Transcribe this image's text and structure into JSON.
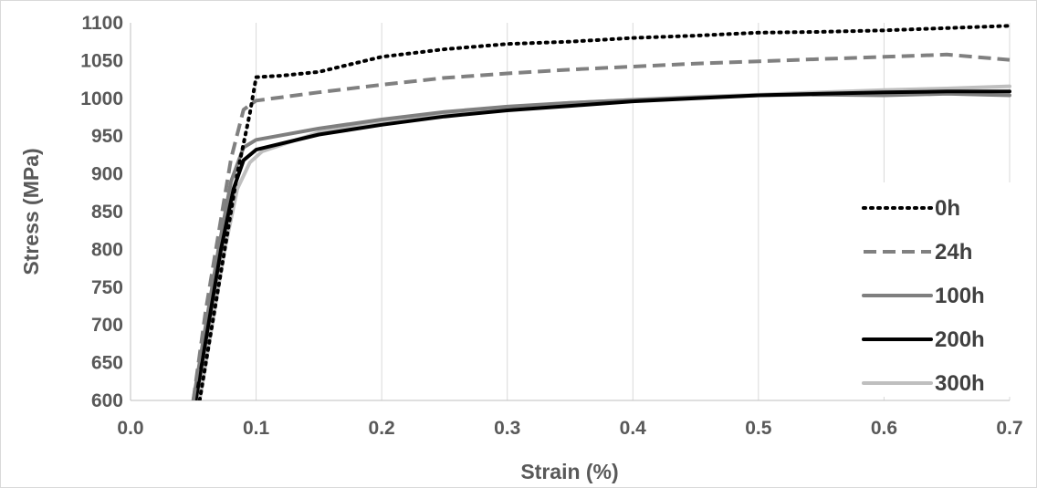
{
  "chart_data": {
    "type": "line",
    "title": "",
    "xlabel": "Strain (%)",
    "ylabel": "Stress (MPa)",
    "xlim": [
      0.0,
      0.7
    ],
    "ylim": [
      600,
      1100
    ],
    "x_ticks": [
      "0.0",
      "0.1",
      "0.2",
      "0.3",
      "0.4",
      "0.5",
      "0.6",
      "0.7"
    ],
    "y_ticks": [
      "600",
      "650",
      "700",
      "750",
      "800",
      "850",
      "900",
      "950",
      "1000",
      "1050",
      "1100"
    ],
    "grid": "vertical",
    "legend_position": "right",
    "series": [
      {
        "name": "0h",
        "color": "#000000",
        "dash": "dotted",
        "points": [
          [
            0.055,
            600
          ],
          [
            0.065,
            700
          ],
          [
            0.075,
            800
          ],
          [
            0.085,
            900
          ],
          [
            0.095,
            980
          ],
          [
            0.1,
            1028
          ],
          [
            0.12,
            1030
          ],
          [
            0.15,
            1035
          ],
          [
            0.2,
            1055
          ],
          [
            0.25,
            1065
          ],
          [
            0.3,
            1072
          ],
          [
            0.35,
            1075
          ],
          [
            0.4,
            1080
          ],
          [
            0.45,
            1083
          ],
          [
            0.5,
            1087
          ],
          [
            0.55,
            1088
          ],
          [
            0.6,
            1090
          ],
          [
            0.65,
            1093
          ],
          [
            0.7,
            1096
          ]
        ]
      },
      {
        "name": "24h",
        "color": "#808080",
        "dash": "dashed",
        "points": [
          [
            0.05,
            600
          ],
          [
            0.06,
            720
          ],
          [
            0.07,
            820
          ],
          [
            0.08,
            920
          ],
          [
            0.09,
            985
          ],
          [
            0.1,
            997
          ],
          [
            0.15,
            1008
          ],
          [
            0.2,
            1018
          ],
          [
            0.25,
            1027
          ],
          [
            0.3,
            1033
          ],
          [
            0.35,
            1038
          ],
          [
            0.4,
            1042
          ],
          [
            0.45,
            1046
          ],
          [
            0.5,
            1049
          ],
          [
            0.55,
            1052
          ],
          [
            0.6,
            1055
          ],
          [
            0.65,
            1058
          ],
          [
            0.7,
            1051
          ]
        ]
      },
      {
        "name": "100h",
        "color": "#7f7f7f",
        "dash": "solid",
        "points": [
          [
            0.05,
            600
          ],
          [
            0.06,
            700
          ],
          [
            0.07,
            800
          ],
          [
            0.08,
            890
          ],
          [
            0.09,
            935
          ],
          [
            0.1,
            945
          ],
          [
            0.15,
            960
          ],
          [
            0.2,
            972
          ],
          [
            0.25,
            982
          ],
          [
            0.3,
            989
          ],
          [
            0.35,
            994
          ],
          [
            0.4,
            998
          ],
          [
            0.45,
            1001
          ],
          [
            0.5,
            1004
          ],
          [
            0.55,
            1005
          ],
          [
            0.6,
            1004
          ],
          [
            0.65,
            1006
          ],
          [
            0.7,
            1004
          ]
        ]
      },
      {
        "name": "200h",
        "color": "#000000",
        "dash": "solid",
        "points": [
          [
            0.052,
            600
          ],
          [
            0.062,
            700
          ],
          [
            0.072,
            800
          ],
          [
            0.082,
            880
          ],
          [
            0.09,
            918
          ],
          [
            0.1,
            932
          ],
          [
            0.15,
            952
          ],
          [
            0.2,
            965
          ],
          [
            0.25,
            976
          ],
          [
            0.3,
            984
          ],
          [
            0.35,
            990
          ],
          [
            0.4,
            996
          ],
          [
            0.45,
            1000
          ],
          [
            0.5,
            1004
          ],
          [
            0.55,
            1006
          ],
          [
            0.6,
            1008
          ],
          [
            0.65,
            1009
          ],
          [
            0.7,
            1009
          ]
        ]
      },
      {
        "name": "300h",
        "color": "#bfbfbf",
        "dash": "solid",
        "points": [
          [
            0.055,
            600
          ],
          [
            0.065,
            700
          ],
          [
            0.075,
            800
          ],
          [
            0.085,
            880
          ],
          [
            0.095,
            915
          ],
          [
            0.105,
            930
          ],
          [
            0.15,
            955
          ],
          [
            0.2,
            968
          ],
          [
            0.25,
            979
          ],
          [
            0.3,
            988
          ],
          [
            0.35,
            994
          ],
          [
            0.4,
            998
          ],
          [
            0.45,
            1002
          ],
          [
            0.5,
            1005
          ],
          [
            0.55,
            1008
          ],
          [
            0.6,
            1011
          ],
          [
            0.65,
            1013
          ],
          [
            0.7,
            1016
          ]
        ]
      }
    ]
  }
}
